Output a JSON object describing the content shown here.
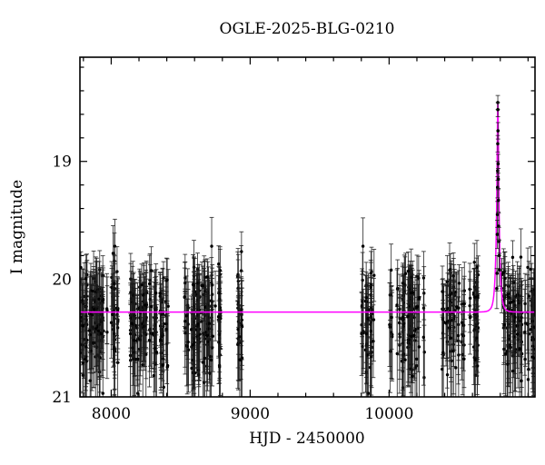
{
  "figure": {
    "title": "OGLE-2025-BLG-0210",
    "xlabel": "HJD - 2450000",
    "ylabel": "I magnitude",
    "background_color": "#ffffff"
  },
  "chart_data": {
    "type": "scatter",
    "subtype": "microlensing-light-curve-with-model",
    "title": "OGLE-2025-BLG-0210",
    "xlabel": "HJD - 2450000",
    "ylabel": "I magnitude",
    "xlim": [
      7775,
      11050
    ],
    "ylim": [
      21.0,
      18.115
    ],
    "y_axis_inverted": true,
    "grid": false,
    "legend": "none",
    "axis_color": "#000000",
    "point_color": "#000000",
    "errorbar_color": "#1c1c1c",
    "x_major_ticks": [
      {
        "value": 8000,
        "label": "8000"
      },
      {
        "value": 9000,
        "label": "9000"
      },
      {
        "value": 10000,
        "label": "10000"
      }
    ],
    "x_minor_step": 200,
    "y_major_ticks": [
      {
        "value": 19,
        "label": "19"
      },
      {
        "value": 20,
        "label": "20"
      },
      {
        "value": 21,
        "label": "21"
      }
    ],
    "y_minor_step": 0.2,
    "baseline_mag": 20.28,
    "model_curve": {
      "type": "paczynski",
      "color": "#ff00ff",
      "t0": 10782.5,
      "tE": 20,
      "u0": 0.195,
      "baseline_mag": 20.28,
      "peak_mag": 18.49
    },
    "seasons": [
      {
        "name": "season-2017",
        "t_start": 7778,
        "t_end": 8050,
        "n_points": 145,
        "mag_mean": 20.35,
        "mag_sigma": 0.22,
        "mag_min": 19.72,
        "mag_max": 20.97,
        "seed": 42
      },
      {
        "name": "season-2018",
        "t_start": 8137,
        "t_end": 8420,
        "n_points": 145,
        "mag_mean": 20.35,
        "mag_sigma": 0.22,
        "mag_min": 19.72,
        "mag_max": 20.97,
        "seed": 7
      },
      {
        "name": "season-2019",
        "t_start": 8522,
        "t_end": 8788,
        "n_points": 150,
        "mag_mean": 20.35,
        "mag_sigma": 0.22,
        "mag_min": 19.72,
        "mag_max": 20.97,
        "seed": 13
      },
      {
        "name": "season-2020",
        "t_start": 8903,
        "t_end": 8948,
        "n_points": 28,
        "mag_mean": 20.35,
        "mag_sigma": 0.22,
        "mag_min": 19.72,
        "mag_max": 20.97,
        "seed": 99
      },
      {
        "name": "season-2022",
        "t_start": 9800,
        "t_end": 9905,
        "n_points": 55,
        "mag_mean": 20.35,
        "mag_sigma": 0.22,
        "mag_min": 19.72,
        "mag_max": 20.97,
        "seed": 5
      },
      {
        "name": "season-2023",
        "t_start": 10000,
        "t_end": 10258,
        "n_points": 112,
        "mag_mean": 20.35,
        "mag_sigma": 0.22,
        "mag_min": 19.72,
        "mag_max": 20.97,
        "seed": 21
      },
      {
        "name": "season-2024",
        "t_start": 10372,
        "t_end": 10644,
        "n_points": 115,
        "mag_mean": 20.35,
        "mag_sigma": 0.22,
        "mag_min": 19.72,
        "mag_max": 20.97,
        "seed": 63
      },
      {
        "name": "season-2025",
        "t_start": 10795,
        "t_end": 11045,
        "n_points": 122,
        "mag_mean": 20.35,
        "mag_sigma": 0.22,
        "mag_min": 19.72,
        "mag_max": 20.97,
        "seed": 77,
        "apply_model_shift": true
      }
    ],
    "peak_points": [
      [
        10775.0,
        20.08,
        0.17
      ],
      [
        10777.0,
        19.95,
        0.15
      ],
      [
        10778.5,
        19.62,
        0.12
      ],
      [
        10779.5,
        19.45,
        0.11
      ],
      [
        10780.5,
        19.22,
        0.09
      ],
      [
        10781.2,
        19.08,
        0.08
      ],
      [
        10781.9,
        18.85,
        0.07
      ],
      [
        10782.3,
        18.5,
        0.06
      ],
      [
        10782.7,
        18.56,
        0.06
      ],
      [
        10783.6,
        18.74,
        0.07
      ],
      [
        10784.6,
        19.02,
        0.08
      ],
      [
        10785.6,
        19.15,
        0.09
      ],
      [
        10786.6,
        19.33,
        0.1
      ],
      [
        10788.0,
        19.55,
        0.11
      ],
      [
        10790.0,
        19.68,
        0.12
      ],
      [
        10792.0,
        19.8,
        0.13
      ],
      [
        10794.0,
        19.92,
        0.14
      ]
    ]
  }
}
